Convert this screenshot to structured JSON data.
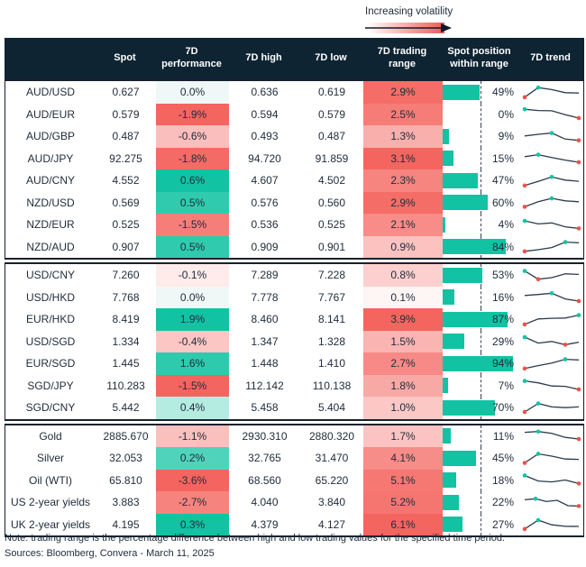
{
  "legend": {
    "label": "Increasing volatility"
  },
  "header": {
    "columns": [
      "",
      "Spot",
      "7D performance",
      "7D high",
      "7D low",
      "7D trading range",
      "Spot position within range",
      "7D trend"
    ]
  },
  "chart_data": {
    "type": "table",
    "value_columns": [
      "Spot",
      "7D performance %",
      "7D high",
      "7D low",
      "7D trading range %",
      "Spot position within range %",
      "7D trend sparkline (0-100 shape, teal dot = high, red dot = low)"
    ],
    "groups": [
      {
        "rows": [
          {
            "name": "AUD/USD",
            "spot": "0.627",
            "perf": 0.0,
            "high": "0.636",
            "low": "0.619",
            "range": 2.9,
            "pos": 49,
            "trend": [
              12,
              88,
              72,
              48,
              45
            ]
          },
          {
            "name": "AUD/EUR",
            "spot": "0.579",
            "perf": -1.9,
            "high": "0.594",
            "low": "0.579",
            "range": 2.5,
            "pos": 0,
            "trend": [
              88,
              78,
              76,
              45,
              18
            ]
          },
          {
            "name": "AUD/GBP",
            "spot": "0.487",
            "perf": -0.6,
            "high": "0.493",
            "low": "0.487",
            "range": 1.3,
            "pos": 9,
            "trend": [
              55,
              68,
              78,
              30,
              20
            ]
          },
          {
            "name": "AUD/JPY",
            "spot": "92.275",
            "perf": -1.8,
            "high": "94.720",
            "low": "91.859",
            "range": 3.1,
            "pos": 15,
            "trend": [
              62,
              78,
              55,
              35,
              18
            ]
          },
          {
            "name": "AUD/CNY",
            "spot": "4.552",
            "perf": 0.6,
            "high": "4.607",
            "low": "4.502",
            "range": 2.3,
            "pos": 47,
            "trend": [
              12,
              45,
              80,
              55,
              46
            ]
          },
          {
            "name": "NZD/USD",
            "spot": "0.569",
            "perf": 0.5,
            "high": "0.576",
            "low": "0.560",
            "range": 2.9,
            "pos": 60,
            "trend": [
              15,
              55,
              82,
              62,
              55
            ]
          },
          {
            "name": "NZD/EUR",
            "spot": "0.525",
            "perf": -1.5,
            "high": "0.536",
            "low": "0.525",
            "range": 2.1,
            "pos": 4,
            "trend": [
              82,
              58,
              66,
              35,
              22
            ]
          },
          {
            "name": "NZD/AUD",
            "spot": "0.907",
            "perf": 0.5,
            "high": "0.909",
            "low": "0.901",
            "range": 0.9,
            "pos": 84,
            "trend": [
              12,
              25,
              42,
              85,
              80
            ]
          }
        ]
      },
      {
        "rows": [
          {
            "name": "USD/CNY",
            "spot": "7.260",
            "perf": -0.1,
            "high": "7.289",
            "low": "7.228",
            "range": 0.8,
            "pos": 53,
            "trend": [
              85,
              20,
              32,
              62,
              58
            ]
          },
          {
            "name": "USD/HKD",
            "spot": "7.768",
            "perf": 0.0,
            "high": "7.778",
            "low": "7.767",
            "range": 0.1,
            "pos": 16,
            "trend": [
              62,
              70,
              80,
              35,
              18
            ]
          },
          {
            "name": "EUR/HKD",
            "spot": "8.419",
            "perf": 1.9,
            "high": "8.460",
            "low": "8.141",
            "range": 3.9,
            "pos": 87,
            "trend": [
              12,
              55,
              60,
              62,
              85
            ]
          },
          {
            "name": "USD/SGD",
            "spot": "1.334",
            "perf": -0.4,
            "high": "1.347",
            "low": "1.328",
            "range": 1.5,
            "pos": 29,
            "trend": [
              82,
              35,
              48,
              22,
              42
            ]
          },
          {
            "name": "EUR/SGD",
            "spot": "1.445",
            "perf": 1.6,
            "high": "1.448",
            "low": "1.410",
            "range": 2.7,
            "pos": 94,
            "trend": [
              12,
              35,
              55,
              85,
              80
            ]
          },
          {
            "name": "SGD/JPY",
            "spot": "110.283",
            "perf": -1.5,
            "high": "112.142",
            "low": "110.138",
            "range": 1.8,
            "pos": 7,
            "trend": [
              85,
              70,
              45,
              42,
              18
            ]
          },
          {
            "name": "SGD/CNY",
            "spot": "5.442",
            "perf": 0.4,
            "high": "5.458",
            "low": "5.404",
            "range": 1.0,
            "pos": 70,
            "trend": [
              18,
              85,
              58,
              52,
              58
            ]
          }
        ]
      },
      {
        "rows": [
          {
            "name": "Gold",
            "spot": "2885.670",
            "perf": -1.1,
            "high": "2930.310",
            "low": "2880.320",
            "range": 1.7,
            "pos": 11,
            "trend": [
              78,
              84,
              70,
              38,
              25
            ]
          },
          {
            "name": "Silver",
            "spot": "32.053",
            "perf": 0.2,
            "high": "32.765",
            "low": "31.470",
            "range": 4.1,
            "pos": 45,
            "trend": [
              14,
              86,
              68,
              45,
              42
            ]
          },
          {
            "name": "Oil (WTI)",
            "spot": "65.810",
            "perf": -3.6,
            "high": "68.560",
            "low": "65.220",
            "range": 5.1,
            "pos": 18,
            "trend": [
              86,
              42,
              35,
              50,
              22
            ]
          },
          {
            "name": "US 2-year yields",
            "spot": "3.883",
            "perf": -2.7,
            "high": "4.040",
            "low": "3.840",
            "range": 5.2,
            "pos": 22,
            "trend": [
              72,
              80,
              58,
              68,
              25,
              22
            ]
          },
          {
            "name": "UK 2-year yields",
            "spot": "4.195",
            "perf": 0.3,
            "high": "4.379",
            "low": "4.127",
            "range": 6.1,
            "pos": 27,
            "trend": [
              12,
              82,
              45,
              33,
              32
            ]
          }
        ]
      }
    ]
  },
  "footer": {
    "note": "Note: trading range is the percentage difference between high and low trading values for the specified time period.",
    "sources": "Sources: Bloomberg, Convera - March 11, 2025"
  },
  "colors": {
    "header_bg": "#0E2433",
    "text": "#1E2B3A",
    "positive_teal": "#12C3A3",
    "negative_red": "#F4655F",
    "zero_performance_bg": "#EFF8F6",
    "position_bar": "#12C3A3",
    "spark_line": "#2B3A4D",
    "spark_high_dot": "#12C3A3",
    "spark_low_dot": "#E9534A"
  }
}
